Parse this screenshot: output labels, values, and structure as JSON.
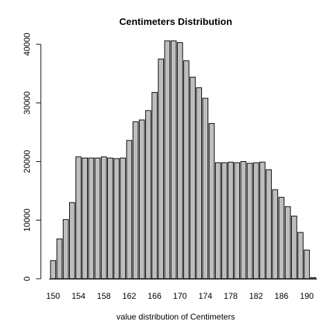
{
  "chart_data": {
    "type": "bar",
    "title": "Centimeters Distribution",
    "xlabel": "value distribution of Centimeters",
    "ylabel": "",
    "x": [
      150,
      151,
      152,
      153,
      154,
      155,
      156,
      157,
      158,
      159,
      160,
      161,
      162,
      163,
      164,
      165,
      166,
      167,
      168,
      169,
      170,
      171,
      172,
      173,
      174,
      175,
      176,
      177,
      178,
      179,
      180,
      181,
      182,
      183,
      184,
      185,
      186,
      187,
      188,
      189,
      190,
      191
    ],
    "values": [
      3100,
      6800,
      10100,
      13000,
      20800,
      20600,
      20600,
      20600,
      20800,
      20600,
      20500,
      20600,
      23600,
      26800,
      27100,
      28700,
      31800,
      37500,
      40600,
      40600,
      40300,
      37200,
      34400,
      32600,
      30800,
      26500,
      19800,
      19800,
      19900,
      19800,
      20000,
      19700,
      19800,
      19900,
      18600,
      15200,
      13900,
      12300,
      10700,
      7900,
      4900,
      200
    ],
    "x_tick_labels": [
      "150",
      "154",
      "158",
      "162",
      "166",
      "170",
      "174",
      "178",
      "182",
      "186",
      "190"
    ],
    "y_tick_labels": [
      "0",
      "10000",
      "20000",
      "30000",
      "40000"
    ],
    "y_ticks": [
      0,
      10000,
      20000,
      30000,
      40000
    ],
    "ylim": [
      0,
      40600
    ],
    "colors": {
      "bar_fill": "#bebebe",
      "bar_stroke": "#000000",
      "axis": "#000000",
      "background": "#ffffff"
    },
    "grid": false,
    "legend": "none"
  }
}
